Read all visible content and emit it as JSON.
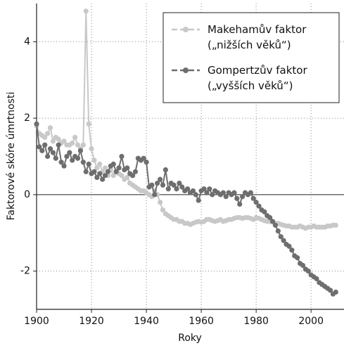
{
  "chart_data": {
    "type": "line",
    "x_label": "Roky",
    "y_label": "Faktorové skóre úmrtnosti",
    "x": [
      1900,
      1901,
      1902,
      1903,
      1904,
      1905,
      1906,
      1907,
      1908,
      1909,
      1910,
      1911,
      1912,
      1913,
      1914,
      1915,
      1916,
      1917,
      1918,
      1919,
      1920,
      1921,
      1922,
      1923,
      1924,
      1925,
      1926,
      1927,
      1928,
      1929,
      1930,
      1931,
      1932,
      1933,
      1934,
      1935,
      1936,
      1937,
      1938,
      1939,
      1940,
      1941,
      1942,
      1943,
      1944,
      1945,
      1946,
      1947,
      1948,
      1949,
      1950,
      1951,
      1952,
      1953,
      1954,
      1955,
      1956,
      1957,
      1958,
      1959,
      1960,
      1961,
      1962,
      1963,
      1964,
      1965,
      1966,
      1967,
      1968,
      1969,
      1970,
      1971,
      1972,
      1973,
      1974,
      1975,
      1976,
      1977,
      1978,
      1979,
      1980,
      1981,
      1982,
      1983,
      1984,
      1985,
      1986,
      1987,
      1988,
      1989,
      1990,
      1991,
      1992,
      1993,
      1994,
      1995,
      1996,
      1997,
      1998,
      1999,
      2000,
      2001,
      2002,
      2003,
      2004,
      2005,
      2006,
      2007,
      2008,
      2009
    ],
    "series": [
      {
        "name": "Makehamův faktor\n(„nižších věků“)",
        "color": "#c8c8c8",
        "values": [
          1.8,
          1.6,
          1.55,
          1.5,
          1.6,
          1.75,
          1.4,
          1.5,
          1.45,
          1.35,
          1.4,
          1.3,
          1.3,
          1.35,
          1.5,
          1.3,
          1.2,
          1.3,
          4.8,
          1.85,
          1.2,
          0.9,
          0.7,
          0.8,
          0.6,
          0.7,
          0.5,
          0.65,
          0.5,
          0.6,
          0.55,
          0.5,
          0.4,
          0.45,
          0.3,
          0.25,
          0.2,
          0.15,
          0.1,
          0.1,
          0.05,
          0.0,
          -0.05,
          0.1,
          0.0,
          -0.2,
          -0.4,
          -0.5,
          -0.55,
          -0.6,
          -0.65,
          -0.65,
          -0.7,
          -0.7,
          -0.75,
          -0.75,
          -0.78,
          -0.75,
          -0.72,
          -0.7,
          -0.72,
          -0.7,
          -0.65,
          -0.65,
          -0.68,
          -0.7,
          -0.68,
          -0.65,
          -0.7,
          -0.68,
          -0.65,
          -0.65,
          -0.62,
          -0.6,
          -0.6,
          -0.62,
          -0.6,
          -0.6,
          -0.62,
          -0.65,
          -0.6,
          -0.62,
          -0.65,
          -0.68,
          -0.7,
          -0.7,
          -0.72,
          -0.75,
          -0.75,
          -0.78,
          -0.8,
          -0.82,
          -0.82,
          -0.85,
          -0.85,
          -0.85,
          -0.82,
          -0.85,
          -0.88,
          -0.85,
          -0.85,
          -0.82,
          -0.85,
          -0.85,
          -0.85,
          -0.85,
          -0.82,
          -0.82,
          -0.8,
          -0.8
        ]
      },
      {
        "name": "Gompertzův faktor\n(„vyšších věků“)",
        "color": "#6e6e6e",
        "values": [
          1.85,
          1.25,
          1.15,
          1.3,
          1.0,
          1.2,
          1.1,
          0.95,
          1.3,
          0.85,
          0.75,
          1.0,
          1.1,
          0.9,
          1.0,
          0.95,
          1.15,
          0.85,
          0.6,
          0.8,
          0.55,
          0.6,
          0.45,
          0.55,
          0.4,
          0.5,
          0.6,
          0.75,
          0.8,
          0.6,
          0.7,
          1.0,
          0.65,
          0.7,
          0.55,
          0.5,
          0.6,
          0.95,
          0.9,
          0.95,
          0.85,
          0.2,
          0.25,
          0.0,
          0.3,
          0.4,
          0.25,
          0.65,
          0.15,
          0.3,
          0.25,
          0.15,
          0.3,
          0.2,
          0.1,
          0.15,
          0.05,
          0.1,
          0.0,
          -0.15,
          0.1,
          0.15,
          0.05,
          0.15,
          0.0,
          0.1,
          0.05,
          0.0,
          0.05,
          -0.05,
          0.05,
          0.0,
          0.05,
          -0.1,
          -0.25,
          -0.05,
          0.05,
          0.0,
          0.05,
          -0.1,
          -0.2,
          -0.3,
          -0.4,
          -0.45,
          -0.55,
          -0.6,
          -0.7,
          -0.8,
          -0.95,
          -1.1,
          -1.2,
          -1.3,
          -1.35,
          -1.45,
          -1.6,
          -1.65,
          -1.8,
          -1.85,
          -1.95,
          -2.0,
          -2.1,
          -2.15,
          -2.2,
          -2.3,
          -2.35,
          -2.4,
          -2.45,
          -2.5,
          -2.6,
          -2.55
        ]
      }
    ],
    "xlim": [
      1900,
      2012
    ],
    "ylim": [
      -3,
      5
    ],
    "xticks": [
      1900,
      1920,
      1940,
      1960,
      1980,
      2000
    ],
    "yticks": [
      -2,
      0,
      2,
      4
    ],
    "grid": true,
    "legend": "upper right"
  }
}
